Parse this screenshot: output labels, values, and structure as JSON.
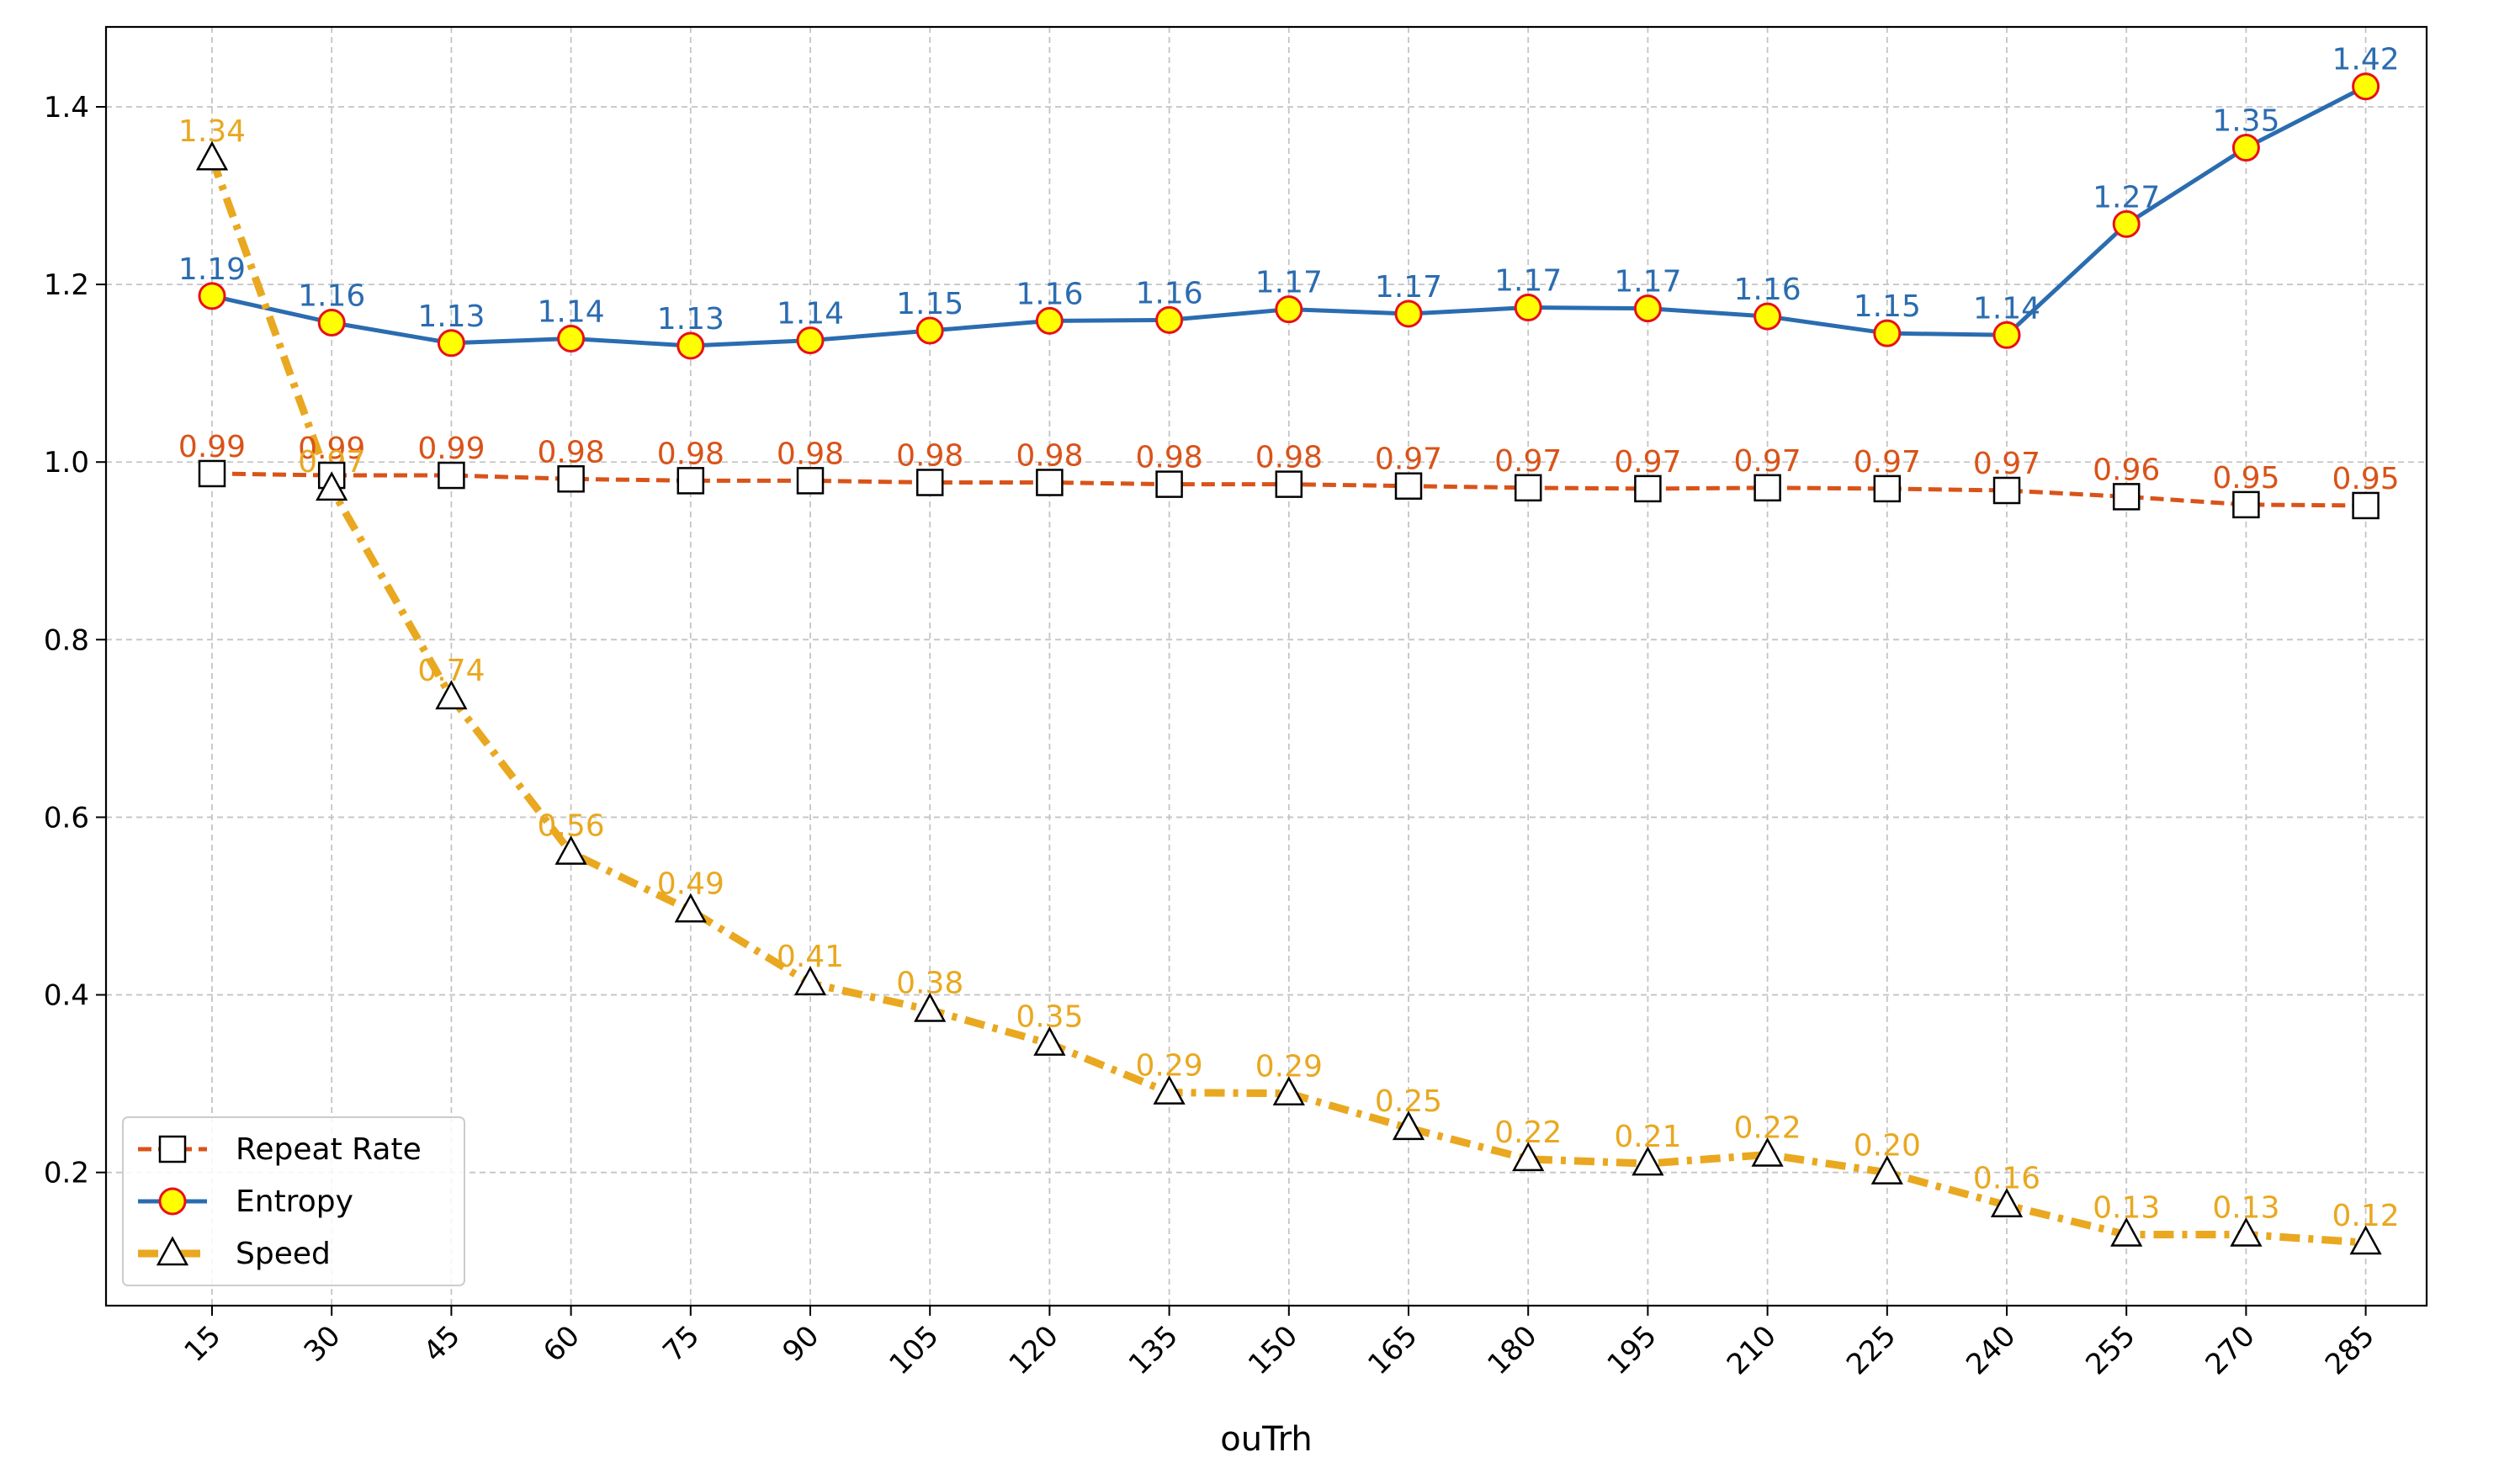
{
  "chart_data": {
    "type": "line",
    "title": "",
    "xlabel": "ouTrh",
    "ylabel": "",
    "categories": [
      "15",
      "30",
      "45",
      "60",
      "75",
      "90",
      "105",
      "120",
      "135",
      "150",
      "165",
      "180",
      "195",
      "210",
      "225",
      "240",
      "255",
      "270",
      "285"
    ],
    "ylim": [
      0.05,
      1.49
    ],
    "yticks": [
      "0.2",
      "0.4",
      "0.6",
      "0.8",
      "1.0",
      "1.2",
      "1.4"
    ],
    "grid": true,
    "legend_position": "lower-left",
    "series": [
      {
        "name": "Repeat Rate",
        "color": "#d95319",
        "line_style": "dashed",
        "marker": "square",
        "values": [
          0.987,
          0.985,
          0.985,
          0.981,
          0.979,
          0.979,
          0.977,
          0.977,
          0.975,
          0.975,
          0.973,
          0.971,
          0.97,
          0.971,
          0.97,
          0.968,
          0.961,
          0.952,
          0.951
        ],
        "labels": [
          "0.99",
          "0.99",
          "0.99",
          "0.98",
          "0.98",
          "0.98",
          "0.98",
          "0.98",
          "0.98",
          "0.98",
          "0.97",
          "0.97",
          "0.97",
          "0.97",
          "0.97",
          "0.97",
          "0.96",
          "0.95",
          "0.95"
        ]
      },
      {
        "name": "Entropy",
        "color": "#2b6cb0",
        "line_style": "solid",
        "marker": "circle",
        "values": [
          1.187,
          1.157,
          1.134,
          1.139,
          1.131,
          1.137,
          1.148,
          1.159,
          1.16,
          1.172,
          1.167,
          1.174,
          1.173,
          1.164,
          1.145,
          1.143,
          1.268,
          1.354,
          1.423
        ],
        "labels": [
          "1.19",
          "1.16",
          "1.13",
          "1.14",
          "1.13",
          "1.14",
          "1.15",
          "1.16",
          "1.16",
          "1.17",
          "1.17",
          "1.17",
          "1.17",
          "1.16",
          "1.15",
          "1.14",
          "1.27",
          "1.35",
          "1.42"
        ]
      },
      {
        "name": "Speed",
        "color": "#e9a820",
        "line_style": "dashdot",
        "marker": "triangle",
        "values": [
          1.342,
          0.97,
          0.735,
          0.56,
          0.495,
          0.413,
          0.383,
          0.345,
          0.29,
          0.289,
          0.25,
          0.215,
          0.21,
          0.22,
          0.2,
          0.163,
          0.13,
          0.13,
          0.121
        ],
        "labels": [
          "1.34",
          "0.97",
          "0.74",
          "0.56",
          "0.49",
          "0.41",
          "0.38",
          "0.35",
          "0.29",
          "0.29",
          "0.25",
          "0.22",
          "0.21",
          "0.22",
          "0.20",
          "0.16",
          "0.13",
          "0.13",
          "0.12"
        ]
      }
    ]
  }
}
